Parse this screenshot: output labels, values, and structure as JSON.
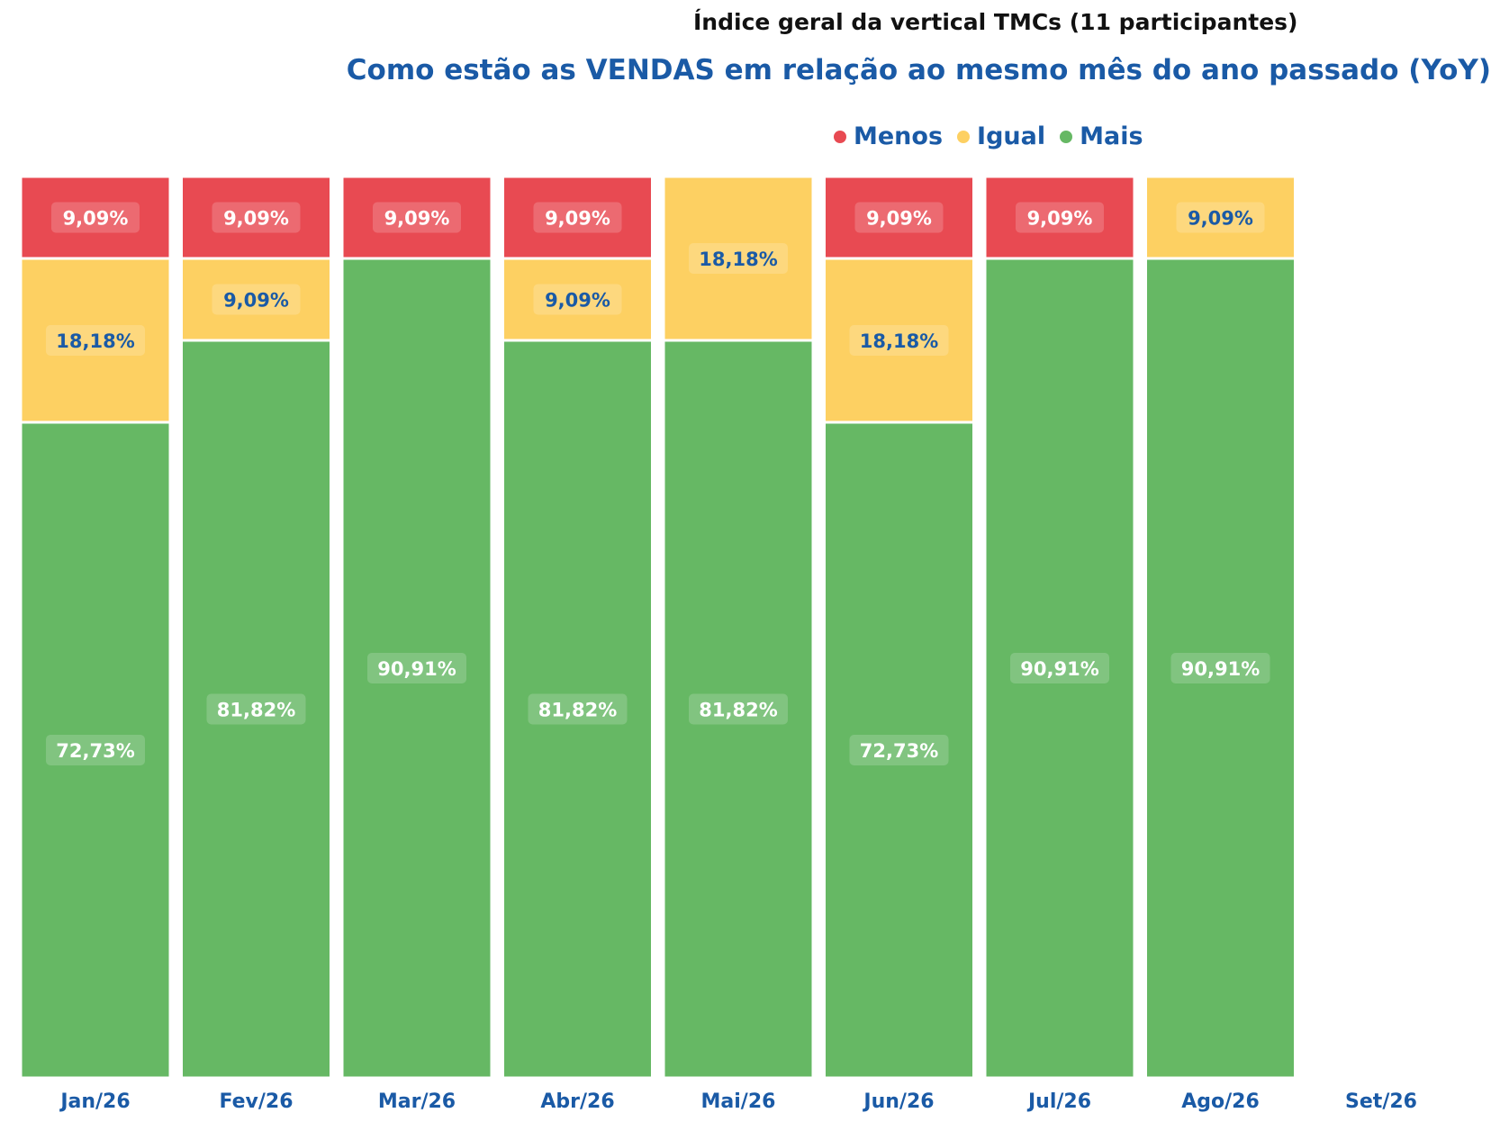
{
  "title": "Índice geral da vertical TMCs  (11 participantes)",
  "subtitle": "Como estão as VENDAS em relação ao mesmo mês do ano passado (YoY)",
  "legend": [
    {
      "name": "Menos",
      "color": "#e84a52"
    },
    {
      "name": "Igual",
      "color": "#fdd062"
    },
    {
      "name": "Mais",
      "color": "#66b864"
    }
  ],
  "chart_data": {
    "type": "bar",
    "stacked": true,
    "normalized_100": true,
    "categories": [
      "Jan/26",
      "Fev/26",
      "Mar/26",
      "Abr/26",
      "Mai/26",
      "Jun/26",
      "Jul/26",
      "Ago/26",
      "Set/26"
    ],
    "series": [
      {
        "name": "Menos",
        "color": "#e84a52",
        "values": [
          9.09,
          9.09,
          9.09,
          9.09,
          0,
          9.09,
          9.09,
          0,
          null
        ],
        "labels": [
          "9,09%",
          "9,09%",
          "9,09%",
          "9,09%",
          "",
          "9,09%",
          "9,09%",
          "",
          ""
        ]
      },
      {
        "name": "Igual",
        "color": "#fdd062",
        "values": [
          18.18,
          9.09,
          0,
          9.09,
          18.18,
          18.18,
          0,
          9.09,
          null
        ],
        "labels": [
          "18,18%",
          "9,09%",
          "",
          "9,09%",
          "18,18%",
          "18,18%",
          "",
          "9,09%",
          ""
        ]
      },
      {
        "name": "Mais",
        "color": "#66b864",
        "values": [
          72.73,
          81.82,
          90.91,
          81.82,
          81.82,
          72.73,
          90.91,
          90.91,
          null
        ],
        "labels": [
          "72,73%",
          "81,82%",
          "90,91%",
          "81,82%",
          "81,82%",
          "72,73%",
          "90,91%",
          "90,91%",
          ""
        ]
      }
    ],
    "ylim": [
      0,
      100
    ],
    "grid": false,
    "legend_position": "top-right"
  }
}
